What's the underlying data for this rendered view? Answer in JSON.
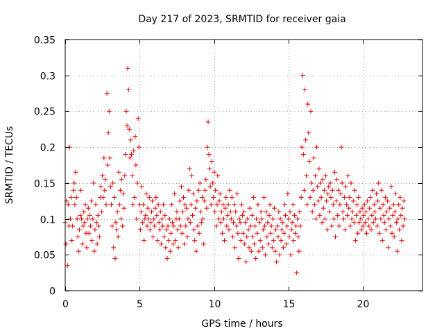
{
  "chart_data": {
    "type": "scatter",
    "title": "Day 217 of 2023, SRMTID for receiver gaia",
    "xlabel": "GPS time / hours",
    "ylabel": "SRMTID / TECUs",
    "xlim": [
      0,
      24
    ],
    "ylim": [
      0,
      0.35
    ],
    "grid": true,
    "marker": "+",
    "x_ticks": [
      0,
      5,
      10,
      15,
      20
    ],
    "x_tick_labels": [
      "0",
      "5",
      "10",
      "15",
      "20"
    ],
    "y_ticks": [
      0,
      0.05,
      0.1,
      0.15,
      0.2,
      0.25,
      0.3,
      0.35
    ],
    "y_tick_labels": [
      "0",
      "0.05",
      "0.1",
      "0.15",
      "0.2",
      "0.25",
      "0.3",
      "0.35"
    ],
    "series": [
      {
        "name": "SRMTID",
        "color": "#e00000",
        "interval_hours": 0.05,
        "x_start": 0.0,
        "values": [
          0.095,
          0.065,
          0.125,
          0.035,
          0.12,
          0.09,
          0.2,
          0.1,
          0.13,
          0.07,
          0.09,
          0.14,
          0.15,
          0.12,
          0.165,
          0.13,
          0.1,
          0.075,
          0.055,
          0.085,
          0.105,
          0.14,
          0.1,
          0.065,
          0.09,
          0.11,
          0.095,
          0.12,
          0.08,
          0.06,
          0.1,
          0.115,
          0.08,
          0.105,
          0.09,
          0.125,
          0.07,
          0.1,
          0.15,
          0.055,
          0.085,
          0.12,
          0.095,
          0.065,
          0.105,
          0.09,
          0.075,
          0.13,
          0.145,
          0.11,
          0.16,
          0.13,
          0.185,
          0.14,
          0.155,
          0.12,
          0.275,
          0.175,
          0.22,
          0.25,
          0.185,
          0.145,
          0.12,
          0.09,
          0.15,
          0.06,
          0.13,
          0.045,
          0.095,
          0.085,
          0.11,
          0.075,
          0.165,
          0.12,
          0.14,
          0.1,
          0.155,
          0.09,
          0.135,
          0.115,
          0.16,
          0.19,
          0.25,
          0.23,
          0.31,
          0.28,
          0.225,
          0.185,
          0.21,
          0.19,
          0.16,
          0.12,
          0.195,
          0.13,
          0.215,
          0.175,
          0.1,
          0.15,
          0.24,
          0.2,
          0.12,
          0.085,
          0.11,
          0.145,
          0.095,
          0.12,
          0.07,
          0.1,
          0.105,
          0.135,
          0.09,
          0.115,
          0.1,
          0.13,
          0.085,
          0.095,
          0.11,
          0.125,
          0.075,
          0.1,
          0.09,
          0.115,
          0.13,
          0.105,
          0.07,
          0.12,
          0.095,
          0.085,
          0.11,
          0.065,
          0.1,
          0.09,
          0.12,
          0.075,
          0.105,
          0.06,
          0.085,
          0.045,
          0.09,
          0.07,
          0.1,
          0.055,
          0.08,
          0.12,
          0.095,
          0.065,
          0.09,
          0.135,
          0.07,
          0.1,
          0.11,
          0.085,
          0.06,
          0.1,
          0.125,
          0.09,
          0.145,
          0.08,
          0.11,
          0.13,
          0.065,
          0.12,
          0.09,
          0.115,
          0.075,
          0.1,
          0.14,
          0.17,
          0.095,
          0.12,
          0.16,
          0.105,
          0.135,
          0.085,
          0.07,
          0.115,
          0.055,
          0.125,
          0.09,
          0.14,
          0.08,
          0.15,
          0.11,
          0.095,
          0.13,
          0.1,
          0.065,
          0.125,
          0.14,
          0.155,
          0.115,
          0.2,
          0.235,
          0.19,
          0.17,
          0.145,
          0.12,
          0.18,
          0.15,
          0.13,
          0.165,
          0.11,
          0.14,
          0.09,
          0.12,
          0.16,
          0.1,
          0.125,
          0.135,
          0.095,
          0.11,
          0.08,
          0.12,
          0.1,
          0.07,
          0.115,
          0.13,
          0.09,
          0.105,
          0.12,
          0.085,
          0.14,
          0.11,
          0.1,
          0.13,
          0.075,
          0.095,
          0.12,
          0.06,
          0.11,
          0.09,
          0.135,
          0.08,
          0.045,
          0.1,
          0.095,
          0.07,
          0.12,
          0.105,
          0.08,
          0.11,
          0.065,
          0.095,
          0.04,
          0.075,
          0.1,
          0.085,
          0.06,
          0.115,
          0.09,
          0.055,
          0.105,
          0.075,
          0.13,
          0.065,
          0.09,
          0.045,
          0.1,
          0.08,
          0.12,
          0.055,
          0.095,
          0.07,
          0.11,
          0.1,
          0.06,
          0.085,
          0.13,
          0.09,
          0.05,
          0.11,
          0.075,
          0.095,
          0.065,
          0.105,
          0.12,
          0.08,
          0.09,
          0.06,
          0.1,
          0.07,
          0.115,
          0.055,
          0.085,
          0.04,
          0.09,
          0.075,
          0.11,
          0.05,
          0.1,
          0.07,
          0.085,
          0.095,
          0.06,
          0.08,
          0.12,
          0.105,
          0.065,
          0.09,
          0.135,
          0.1,
          0.075,
          0.11,
          0.05,
          0.085,
          0.095,
          0.12,
          0.07,
          0.105,
          0.08,
          0.09,
          0.025,
          0.1,
          0.075,
          0.055,
          0.11,
          0.09,
          0.13,
          0.2,
          0.3,
          0.19,
          0.14,
          0.28,
          0.21,
          0.16,
          0.12,
          0.26,
          0.22,
          0.18,
          0.13,
          0.25,
          0.15,
          0.11,
          0.14,
          0.185,
          0.12,
          0.16,
          0.1,
          0.2,
          0.145,
          0.125,
          0.17,
          0.105,
          0.15,
          0.13,
          0.095,
          0.155,
          0.115,
          0.14,
          0.1,
          0.16,
          0.125,
          0.085,
          0.135,
          0.145,
          0.11,
          0.15,
          0.13,
          0.09,
          0.14,
          0.12,
          0.1,
          0.165,
          0.075,
          0.125,
          0.155,
          0.105,
          0.14,
          0.09,
          0.12,
          0.135,
          0.2,
          0.15,
          0.11,
          0.1,
          0.13,
          0.085,
          0.145,
          0.12,
          0.105,
          0.16,
          0.115,
          0.13,
          0.09,
          0.15,
          0.1,
          0.11,
          0.125,
          0.095,
          0.14,
          0.07,
          0.105,
          0.12,
          0.08,
          0.13,
          0.095,
          0.11,
          0.1,
          0.085,
          0.115,
          0.09,
          0.105,
          0.12,
          0.095,
          0.11,
          0.08,
          0.125,
          0.1,
          0.09,
          0.115,
          0.13,
          0.085,
          0.105,
          0.14,
          0.095,
          0.12,
          0.11,
          0.1,
          0.135,
          0.09,
          0.125,
          0.15,
          0.08,
          0.115,
          0.1,
          0.14,
          0.07,
          0.12,
          0.105,
          0.095,
          0.13,
          0.085,
          0.11,
          0.125,
          0.06,
          0.1,
          0.115,
          0.09,
          0.145,
          0.08,
          0.105,
          0.12,
          0.075,
          0.11,
          0.135,
          0.095,
          0.055,
          0.1,
          0.12,
          0.085,
          0.13,
          0.105,
          0.07,
          0.115,
          0.09,
          0.125,
          0.1
        ]
      }
    ]
  }
}
